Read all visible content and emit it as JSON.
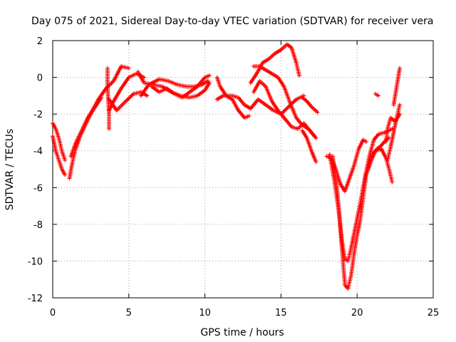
{
  "chart_data": {
    "type": "scatter",
    "title": "Day 075 of 2021, Sidereal Day-to-day VTEC variation (SDTVAR) for receiver vera",
    "xlabel": "GPS time / hours",
    "ylabel": "SDTVAR / TECUs",
    "xlim": [
      0,
      25
    ],
    "ylim": [
      -12,
      2
    ],
    "xticks": [
      0,
      5,
      10,
      15,
      20,
      25
    ],
    "yticks": [
      -12,
      -10,
      -8,
      -6,
      -4,
      -2,
      0,
      2
    ],
    "xtick_labels": [
      "0",
      "5",
      "10",
      "15",
      "20",
      "25"
    ],
    "ytick_labels": [
      "-12",
      "-10",
      "-8",
      "-6",
      "-4",
      "-2",
      "0",
      "2"
    ],
    "grid": true,
    "marker": "plus",
    "color": "#ff0000",
    "series": [
      {
        "name": "satellite-tracks",
        "tracks": [
          [
            [
              0.0,
              -2.5
            ],
            [
              0.2,
              -2.8
            ],
            [
              0.4,
              -3.3
            ],
            [
              0.6,
              -4.0
            ],
            [
              0.8,
              -4.5
            ]
          ],
          [
            [
              0.0,
              -3.2
            ],
            [
              0.2,
              -4.0
            ],
            [
              0.4,
              -4.5
            ],
            [
              0.6,
              -5.0
            ],
            [
              0.8,
              -5.3
            ]
          ],
          [
            [
              1.1,
              -5.5
            ],
            [
              1.3,
              -4.6
            ],
            [
              1.5,
              -3.9
            ],
            [
              1.8,
              -3.2
            ],
            [
              2.2,
              -2.5
            ],
            [
              2.6,
              -1.8
            ],
            [
              3.0,
              -1.2
            ],
            [
              3.5,
              -0.6
            ],
            [
              4.0,
              -0.2
            ],
            [
              4.5,
              0.6
            ],
            [
              5.0,
              0.5
            ]
          ],
          [
            [
              1.2,
              -4.3
            ],
            [
              1.5,
              -3.6
            ],
            [
              1.9,
              -2.9
            ],
            [
              2.3,
              -2.2
            ],
            [
              2.8,
              -1.6
            ],
            [
              3.2,
              -1.1
            ]
          ],
          [
            [
              3.7,
              -1.8
            ],
            [
              4.0,
              -1.3
            ],
            [
              4.5,
              -0.6
            ],
            [
              5.0,
              0.0
            ],
            [
              5.5,
              0.2
            ],
            [
              6.0,
              0.0
            ]
          ],
          [
            [
              3.7,
              -1.2
            ],
            [
              4.2,
              -1.8
            ],
            [
              4.8,
              -1.3
            ],
            [
              5.3,
              -0.9
            ],
            [
              5.8,
              -0.8
            ],
            [
              6.2,
              -1.0
            ]
          ],
          [
            [
              3.6,
              0.5
            ],
            [
              3.6,
              -0.5
            ],
            [
              3.7,
              -2.0
            ],
            [
              3.7,
              -2.8
            ]
          ],
          [
            [
              5.6,
              0.3
            ],
            [
              6.0,
              -0.3
            ],
            [
              6.6,
              -0.4
            ],
            [
              7.2,
              -0.5
            ],
            [
              7.8,
              -0.8
            ],
            [
              8.4,
              -1.0
            ],
            [
              9.0,
              -1.1
            ],
            [
              9.5,
              -1.0
            ],
            [
              10.0,
              -0.7
            ],
            [
              10.3,
              -0.3
            ]
          ],
          [
            [
              5.8,
              -1.0
            ],
            [
              6.3,
              -0.4
            ],
            [
              7.0,
              -0.1
            ],
            [
              7.6,
              -0.2
            ],
            [
              8.2,
              -0.4
            ],
            [
              8.8,
              -0.5
            ],
            [
              9.3,
              -0.5
            ],
            [
              9.8,
              -0.4
            ],
            [
              10.2,
              -0.2
            ]
          ],
          [
            [
              6.5,
              -0.5
            ],
            [
              7.0,
              -0.8
            ],
            [
              7.5,
              -0.6
            ],
            [
              8.0,
              -0.9
            ],
            [
              8.5,
              -1.1
            ],
            [
              9.0,
              -0.8
            ],
            [
              9.5,
              -0.5
            ],
            [
              10.0,
              0.0
            ],
            [
              10.3,
              0.1
            ]
          ],
          [
            [
              10.8,
              0.0
            ],
            [
              11.0,
              -0.5
            ],
            [
              11.4,
              -1.0
            ],
            [
              11.8,
              -1.2
            ],
            [
              12.2,
              -1.8
            ],
            [
              12.6,
              -2.2
            ],
            [
              12.9,
              -2.1
            ]
          ],
          [
            [
              10.8,
              -1.2
            ],
            [
              11.2,
              -1.0
            ],
            [
              11.8,
              -1.0
            ],
            [
              12.2,
              -1.1
            ],
            [
              12.6,
              -1.5
            ],
            [
              13.0,
              -1.7
            ],
            [
              13.5,
              -1.2
            ],
            [
              14.0,
              -1.5
            ],
            [
              14.5,
              -1.8
            ],
            [
              15.0,
              -2.0
            ],
            [
              15.5,
              -1.6
            ],
            [
              16.0,
              -1.2
            ],
            [
              16.5,
              -1.0
            ]
          ],
          [
            [
              13.0,
              -0.3
            ],
            [
              13.4,
              0.2
            ],
            [
              13.8,
              0.8
            ],
            [
              14.2,
              1.0
            ],
            [
              14.6,
              1.3
            ],
            [
              15.0,
              1.5
            ],
            [
              15.4,
              1.8
            ],
            [
              15.7,
              1.6
            ],
            [
              16.0,
              0.8
            ],
            [
              16.2,
              0.1
            ]
          ],
          [
            [
              13.2,
              0.6
            ],
            [
              13.6,
              0.6
            ],
            [
              14.0,
              0.4
            ],
            [
              14.4,
              0.2
            ],
            [
              14.8,
              0.0
            ],
            [
              15.2,
              -0.5
            ],
            [
              15.6,
              -1.4
            ],
            [
              16.0,
              -2.2
            ],
            [
              16.4,
              -2.6
            ],
            [
              16.8,
              -2.8
            ],
            [
              17.2,
              -3.2
            ]
          ],
          [
            [
              13.2,
              -0.8
            ],
            [
              13.6,
              -0.2
            ],
            [
              14.0,
              -0.5
            ],
            [
              14.4,
              -1.3
            ],
            [
              14.8,
              -1.8
            ],
            [
              15.3,
              -2.3
            ],
            [
              15.7,
              -2.7
            ],
            [
              16.1,
              -2.8
            ],
            [
              16.5,
              -2.5
            ],
            [
              17.0,
              -3.0
            ],
            [
              17.3,
              -3.3
            ]
          ],
          [
            [
              16.4,
              -1.1
            ],
            [
              16.7,
              -1.3
            ],
            [
              17.0,
              -1.6
            ],
            [
              17.4,
              -1.9
            ]
          ],
          [
            [
              16.4,
              -2.9
            ],
            [
              16.7,
              -3.3
            ],
            [
              17.0,
              -4.0
            ],
            [
              17.3,
              -4.6
            ]
          ],
          [
            [
              18.2,
              -4.2
            ],
            [
              18.5,
              -5.6
            ],
            [
              18.8,
              -7.3
            ],
            [
              19.0,
              -8.9
            ],
            [
              19.2,
              -9.9
            ],
            [
              19.4,
              -10.0
            ],
            [
              19.6,
              -9.3
            ],
            [
              19.8,
              -8.5
            ],
            [
              20.0,
              -7.7
            ],
            [
              20.2,
              -6.9
            ],
            [
              20.5,
              -5.5
            ],
            [
              20.8,
              -4.3
            ],
            [
              21.1,
              -3.4
            ],
            [
              21.4,
              -3.1
            ],
            [
              21.8,
              -3.0
            ],
            [
              22.1,
              -2.9
            ],
            [
              22.3,
              -2.8
            ]
          ],
          [
            [
              18.4,
              -4.3
            ],
            [
              18.7,
              -6.2
            ],
            [
              18.9,
              -8.2
            ],
            [
              19.1,
              -10.3
            ],
            [
              19.2,
              -11.3
            ],
            [
              19.4,
              -11.5
            ],
            [
              19.6,
              -10.8
            ],
            [
              19.8,
              -9.6
            ],
            [
              20.0,
              -8.6
            ],
            [
              20.2,
              -7.8
            ],
            [
              20.4,
              -6.5
            ],
            [
              20.6,
              -5.3
            ],
            [
              20.9,
              -4.6
            ],
            [
              21.2,
              -4.0
            ],
            [
              21.6,
              -3.9
            ],
            [
              21.9,
              -4.4
            ],
            [
              22.1,
              -5.0
            ],
            [
              22.3,
              -5.7
            ]
          ],
          [
            [
              18.0,
              -4.3
            ],
            [
              18.3,
              -4.4
            ],
            [
              18.6,
              -5.0
            ],
            [
              18.9,
              -5.8
            ],
            [
              19.2,
              -6.2
            ],
            [
              19.5,
              -5.5
            ],
            [
              19.8,
              -4.8
            ],
            [
              20.1,
              -3.9
            ],
            [
              20.4,
              -3.4
            ],
            [
              20.6,
              -3.5
            ]
          ],
          [
            [
              20.7,
              -5.0
            ],
            [
              21.0,
              -4.2
            ],
            [
              21.3,
              -3.9
            ],
            [
              21.6,
              -3.7
            ],
            [
              21.9,
              -3.4
            ],
            [
              22.1,
              -3.3
            ]
          ],
          [
            [
              21.2,
              -0.9
            ],
            [
              21.4,
              -1.0
            ]
          ],
          [
            [
              21.9,
              -3.5
            ],
            [
              22.0,
              -2.8
            ],
            [
              22.2,
              -2.2
            ],
            [
              22.5,
              -2.4
            ],
            [
              22.8,
              -2.0
            ]
          ],
          [
            [
              22.4,
              -1.5
            ],
            [
              22.5,
              -1.0
            ],
            [
              22.6,
              -0.5
            ],
            [
              22.7,
              0.0
            ],
            [
              22.8,
              0.5
            ]
          ],
          [
            [
              22.0,
              -4.5
            ],
            [
              22.2,
              -3.8
            ],
            [
              22.4,
              -3.0
            ],
            [
              22.6,
              -2.2
            ],
            [
              22.8,
              -1.5
            ]
          ]
        ]
      }
    ]
  }
}
